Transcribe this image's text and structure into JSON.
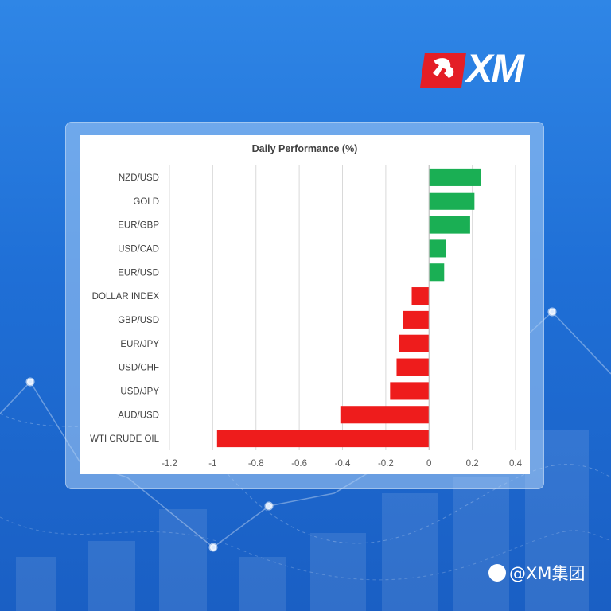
{
  "brand": {
    "name": "XM"
  },
  "watermark": {
    "text": "@XM集团"
  },
  "colors": {
    "positive": "#1aaf54",
    "negative": "#ee1c1c",
    "background": "#2376dc"
  },
  "chart_data": {
    "type": "bar",
    "orientation": "horizontal",
    "title": "Daily Performance (%)",
    "categories": [
      "NZD/USD",
      "GOLD",
      "EUR/GBP",
      "USD/CAD",
      "EUR/USD",
      "DOLLAR INDEX",
      "GBP/USD",
      "EUR/JPY",
      "USD/CHF",
      "USD/JPY",
      "AUD/USD",
      "WTI CRUDE OIL"
    ],
    "values": [
      0.24,
      0.21,
      0.19,
      0.08,
      0.07,
      -0.08,
      -0.12,
      -0.14,
      -0.15,
      -0.18,
      -0.41,
      -0.98
    ],
    "xlim": [
      -1.2,
      0.4
    ],
    "xticks": [
      "-1.2",
      "-1",
      "-0.8",
      "-0.6",
      "-0.4",
      "-0.2",
      "0",
      "0.2",
      "0.4"
    ],
    "grid": true,
    "legend": "none"
  }
}
